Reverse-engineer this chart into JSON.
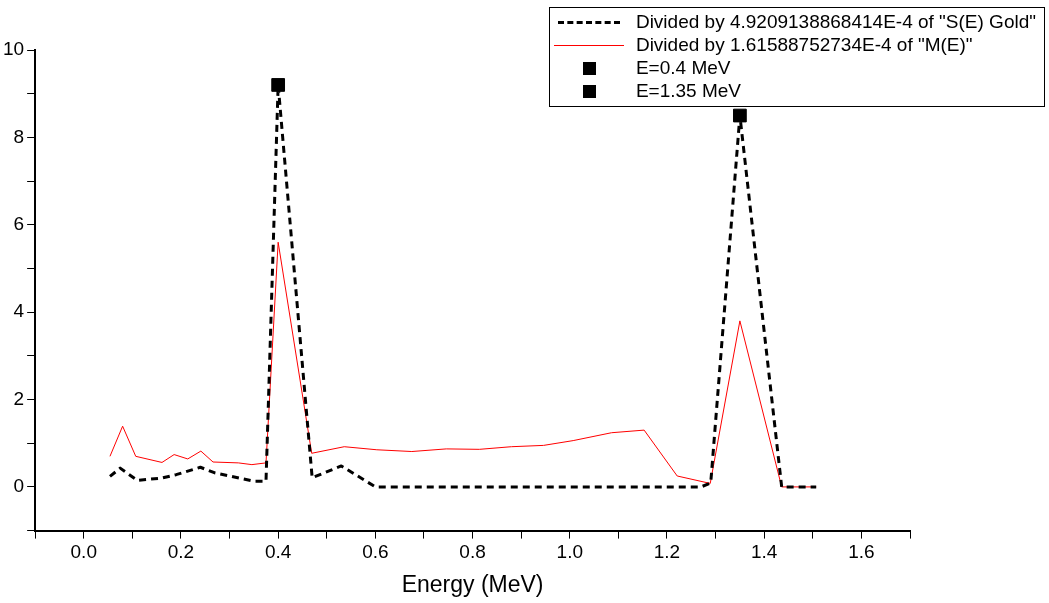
{
  "chart_data": {
    "type": "line",
    "xlabel": "Energy (MeV)",
    "xlim": [
      -0.1,
      1.7
    ],
    "xticks": [
      {
        "value": -0.1,
        "label": null
      },
      {
        "value": 0,
        "label": "0.0"
      },
      {
        "value": 0.1,
        "label": null
      },
      0.2,
      {
        "value": 0.3,
        "label": null
      },
      0.4,
      {
        "value": 0.5,
        "label": null
      },
      0.6,
      {
        "value": 0.7,
        "label": null
      },
      0.8,
      {
        "value": 0.9,
        "label": null
      },
      {
        "value": 1,
        "label": "1.0"
      },
      {
        "value": 1.1,
        "label": null
      },
      1.2,
      {
        "value": 1.3,
        "label": null
      },
      1.4,
      {
        "value": 1.5,
        "label": null
      },
      1.6,
      {
        "value": 1.7,
        "label": null
      }
    ],
    "ylim": [
      -1,
      10
    ],
    "yticks": [
      {
        "value": -1,
        "label": null
      },
      0,
      {
        "value": 1,
        "label": null
      },
      2,
      {
        "value": 3,
        "label": null
      },
      4,
      {
        "value": 5,
        "label": null
      },
      6,
      {
        "value": 7,
        "label": null
      },
      8,
      {
        "value": 9,
        "label": null
      },
      10
    ],
    "grid": false,
    "legend": "top right",
    "series": [
      {
        "name": "Divided by 4.9209138868414E-4 of \"S(E) Gold\"",
        "color": "#000000",
        "line_style": "dashed",
        "marker": "none",
        "x": [
          0.054,
          0.075,
          0.11,
          0.16,
          0.19,
          0.24,
          0.27,
          0.35,
          0.375,
          0.4,
          0.47,
          0.53,
          0.6,
          0.8,
          1.0,
          1.2,
          1.27,
          1.29,
          1.35,
          1.436,
          1.507
        ],
        "values": [
          0.24,
          0.43,
          0.15,
          0.2,
          0.28,
          0.45,
          0.32,
          0.13,
          0.13,
          9.2,
          0.21,
          0.48,
          0,
          0,
          0,
          0,
          0,
          0.09,
          8.5,
          0,
          0
        ]
      },
      {
        "name": "Divided by 1.61588752734E-4 of \"M(E)\"",
        "color": "#ff0000",
        "line_style": "solid",
        "marker": "none",
        "x": [
          0.054,
          0.08,
          0.107,
          0.161,
          0.186,
          0.214,
          0.241,
          0.266,
          0.318,
          0.346,
          0.375,
          0.4,
          0.469,
          0.536,
          0.603,
          0.675,
          0.746,
          0.814,
          0.88,
          0.946,
          1.007,
          1.086,
          1.153,
          1.221,
          1.289,
          1.35,
          1.436,
          1.507
        ],
        "values": [
          0.7,
          1.39,
          0.7,
          0.56,
          0.74,
          0.64,
          0.82,
          0.57,
          0.55,
          0.51,
          0.55,
          5.6,
          0.77,
          0.92,
          0.85,
          0.81,
          0.87,
          0.86,
          0.92,
          0.95,
          1.06,
          1.24,
          1.3,
          0.25,
          0.08,
          3.8,
          0,
          0
        ]
      },
      {
        "name": "E=0.4 MeV",
        "type": "scatter",
        "color": "#000000",
        "marker": "square",
        "x": [
          0.4
        ],
        "values": [
          9.2
        ]
      },
      {
        "name": "E=1.35 MeV",
        "type": "scatter",
        "color": "#000000",
        "marker": "square",
        "x": [
          1.35
        ],
        "values": [
          8.5
        ]
      }
    ]
  }
}
